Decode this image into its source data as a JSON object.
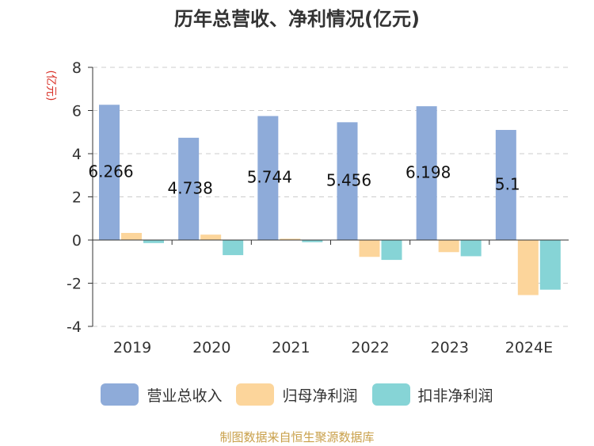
{
  "chart_data": {
    "type": "bar",
    "title": "历年总营收、净利情况(亿元)",
    "ylabel": "(亿元)",
    "categories": [
      "2019",
      "2020",
      "2021",
      "2022",
      "2023",
      "2024E"
    ],
    "ylim": [
      -4,
      8
    ],
    "yticks": [
      -4,
      -2,
      0,
      2,
      4,
      6,
      8
    ],
    "grid": true,
    "legend": "bottom",
    "series": [
      {
        "name": "营业总收入",
        "color": "#8eabd9",
        "values": [
          6.266,
          4.738,
          5.744,
          5.456,
          6.198,
          5.1
        ],
        "labels": [
          "6.266",
          "4.738",
          "5.744",
          "5.456",
          "6.198",
          "5.1"
        ]
      },
      {
        "name": "归母净利润",
        "color": "#fcd59b",
        "values": [
          0.33,
          0.25,
          0.06,
          -0.78,
          -0.56,
          -2.55
        ]
      },
      {
        "name": "扣非净利润",
        "color": "#86d4d6",
        "values": [
          -0.14,
          -0.7,
          -0.1,
          -0.92,
          -0.75,
          -2.3
        ]
      }
    ]
  },
  "footer": {
    "source": "制图数据来自恒生聚源数据库"
  }
}
